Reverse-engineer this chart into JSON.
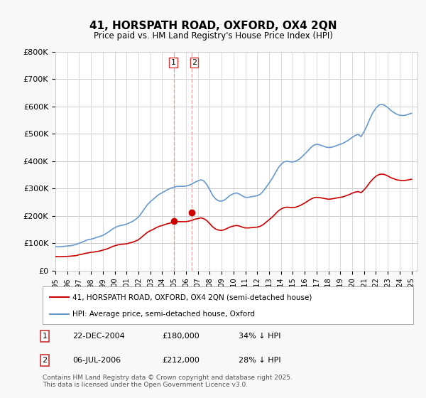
{
  "title": "41, HORSPATH ROAD, OXFORD, OX4 2QN",
  "subtitle": "Price paid vs. HM Land Registry's House Price Index (HPI)",
  "ylabel": "",
  "xlabel": "",
  "ylim": [
    0,
    800000
  ],
  "yticks": [
    0,
    100000,
    200000,
    300000,
    400000,
    500000,
    600000,
    700000,
    800000
  ],
  "ytick_labels": [
    "£0",
    "£100K",
    "£200K",
    "£300K",
    "£400K",
    "£500K",
    "£600K",
    "£700K",
    "£800K"
  ],
  "xlim_start": 1995.0,
  "xlim_end": 2025.5,
  "price_paid_color": "#cc0000",
  "hpi_color": "#6699cc",
  "transaction1_x": 2004.97,
  "transaction1_price": 180000,
  "transaction1_label": "1",
  "transaction1_date": "22-DEC-2004",
  "transaction1_hpi_pct": "34% ↓ HPI",
  "transaction2_x": 2006.5,
  "transaction2_price": 212000,
  "transaction2_label": "2",
  "transaction2_date": "06-JUL-2006",
  "transaction2_hpi_pct": "28% ↓ HPI",
  "legend_line1": "41, HORSPATH ROAD, OXFORD, OX4 2QN (semi-detached house)",
  "legend_line2": "HPI: Average price, semi-detached house, Oxford",
  "copyright": "Contains HM Land Registry data © Crown copyright and database right 2025.\nThis data is licensed under the Open Government Licence v3.0.",
  "background_color": "#f8f8f8",
  "plot_bg_color": "#ffffff",
  "hpi_data_x": [
    1995,
    1995.25,
    1995.5,
    1995.75,
    1996,
    1996.25,
    1996.5,
    1996.75,
    1997,
    1997.25,
    1997.5,
    1997.75,
    1998,
    1998.25,
    1998.5,
    1998.75,
    1999,
    1999.25,
    1999.5,
    1999.75,
    2000,
    2000.25,
    2000.5,
    2000.75,
    2001,
    2001.25,
    2001.5,
    2001.75,
    2002,
    2002.25,
    2002.5,
    2002.75,
    2003,
    2003.25,
    2003.5,
    2003.75,
    2004,
    2004.25,
    2004.5,
    2004.75,
    2005,
    2005.25,
    2005.5,
    2005.75,
    2006,
    2006.25,
    2006.5,
    2006.75,
    2007,
    2007.25,
    2007.5,
    2007.75,
    2008,
    2008.25,
    2008.5,
    2008.75,
    2009,
    2009.25,
    2009.5,
    2009.75,
    2010,
    2010.25,
    2010.5,
    2010.75,
    2011,
    2011.25,
    2011.5,
    2011.75,
    2012,
    2012.25,
    2012.5,
    2012.75,
    2013,
    2013.25,
    2013.5,
    2013.75,
    2014,
    2014.25,
    2014.5,
    2014.75,
    2015,
    2015.25,
    2015.5,
    2015.75,
    2016,
    2016.25,
    2016.5,
    2016.75,
    2017,
    2017.25,
    2017.5,
    2017.75,
    2018,
    2018.25,
    2018.5,
    2018.75,
    2019,
    2019.25,
    2019.5,
    2019.75,
    2020,
    2020.25,
    2020.5,
    2020.75,
    2021,
    2021.25,
    2021.5,
    2021.75,
    2022,
    2022.25,
    2022.5,
    2022.75,
    2023,
    2023.25,
    2023.5,
    2023.75,
    2024,
    2024.25,
    2024.5,
    2024.75,
    2025
  ],
  "hpi_data_y": [
    88000,
    87000,
    87500,
    89000,
    90000,
    91000,
    93000,
    96000,
    100000,
    104000,
    109000,
    113000,
    115000,
    118000,
    122000,
    125000,
    129000,
    135000,
    142000,
    150000,
    157000,
    162000,
    165000,
    167000,
    170000,
    175000,
    180000,
    187000,
    196000,
    210000,
    226000,
    241000,
    252000,
    261000,
    271000,
    279000,
    285000,
    291000,
    297000,
    302000,
    305000,
    308000,
    308000,
    308000,
    309000,
    312000,
    317000,
    323000,
    328000,
    332000,
    328000,
    315000,
    296000,
    275000,
    262000,
    255000,
    254000,
    258000,
    267000,
    276000,
    281000,
    284000,
    280000,
    273000,
    268000,
    268000,
    270000,
    272000,
    274000,
    279000,
    290000,
    305000,
    320000,
    336000,
    355000,
    374000,
    388000,
    397000,
    400000,
    398000,
    397000,
    400000,
    406000,
    415000,
    426000,
    437000,
    449000,
    458000,
    462000,
    460000,
    456000,
    452000,
    450000,
    451000,
    454000,
    458000,
    462000,
    466000,
    472000,
    479000,
    487000,
    494000,
    498000,
    490000,
    508000,
    530000,
    556000,
    578000,
    594000,
    605000,
    608000,
    604000,
    596000,
    586000,
    578000,
    572000,
    568000,
    567000,
    568000,
    572000,
    575000
  ],
  "price_data_x": [
    1995,
    1995.25,
    1995.5,
    1995.75,
    1996,
    1996.25,
    1996.5,
    1996.75,
    1997,
    1997.25,
    1997.5,
    1997.75,
    1998,
    1998.25,
    1998.5,
    1998.75,
    1999,
    1999.25,
    1999.5,
    1999.75,
    2000,
    2000.25,
    2000.5,
    2000.75,
    2001,
    2001.25,
    2001.5,
    2001.75,
    2002,
    2002.25,
    2002.5,
    2002.75,
    2003,
    2003.25,
    2003.5,
    2003.75,
    2004,
    2004.25,
    2004.5,
    2004.75,
    2005,
    2005.25,
    2005.5,
    2005.75,
    2006,
    2006.25,
    2006.5,
    2006.75,
    2007,
    2007.25,
    2007.5,
    2007.75,
    2008,
    2008.25,
    2008.5,
    2008.75,
    2009,
    2009.25,
    2009.5,
    2009.75,
    2010,
    2010.25,
    2010.5,
    2010.75,
    2011,
    2011.25,
    2011.5,
    2011.75,
    2012,
    2012.25,
    2012.5,
    2012.75,
    2013,
    2013.25,
    2013.5,
    2013.75,
    2014,
    2014.25,
    2014.5,
    2014.75,
    2015,
    2015.25,
    2015.5,
    2015.75,
    2016,
    2016.25,
    2016.5,
    2016.75,
    2017,
    2017.25,
    2017.5,
    2017.75,
    2018,
    2018.25,
    2018.5,
    2018.75,
    2019,
    2019.25,
    2019.5,
    2019.75,
    2020,
    2020.25,
    2020.5,
    2020.75,
    2021,
    2021.25,
    2021.5,
    2021.75,
    2022,
    2022.25,
    2022.5,
    2022.75,
    2023,
    2023.25,
    2023.5,
    2023.75,
    2024,
    2024.25,
    2024.5,
    2024.75,
    2025
  ],
  "price_data_y": [
    52000,
    51000,
    51000,
    52000,
    52000,
    53000,
    54000,
    55000,
    58000,
    60000,
    63000,
    65000,
    67000,
    68000,
    70000,
    72000,
    75000,
    78000,
    82000,
    87000,
    91000,
    94000,
    96000,
    97000,
    98000,
    101000,
    104000,
    108000,
    113000,
    122000,
    131000,
    140000,
    146000,
    151000,
    157000,
    162000,
    165000,
    169000,
    172000,
    175000,
    177000,
    179000,
    179000,
    179000,
    179000,
    181000,
    184000,
    188000,
    190000,
    193000,
    190000,
    183000,
    172000,
    160000,
    152000,
    148000,
    147000,
    150000,
    155000,
    160000,
    163000,
    165000,
    163000,
    159000,
    156000,
    156000,
    157000,
    158000,
    159000,
    162000,
    168000,
    177000,
    186000,
    195000,
    206000,
    217000,
    225000,
    230000,
    232000,
    231000,
    230000,
    232000,
    236000,
    241000,
    247000,
    254000,
    261000,
    266000,
    268000,
    267000,
    265000,
    263000,
    261000,
    262000,
    264000,
    266000,
    268000,
    270000,
    274000,
    278000,
    283000,
    287000,
    289000,
    285000,
    295000,
    308000,
    323000,
    335000,
    345000,
    351000,
    353000,
    351000,
    346000,
    340000,
    336000,
    332000,
    330000,
    329000,
    330000,
    332000,
    334000
  ]
}
